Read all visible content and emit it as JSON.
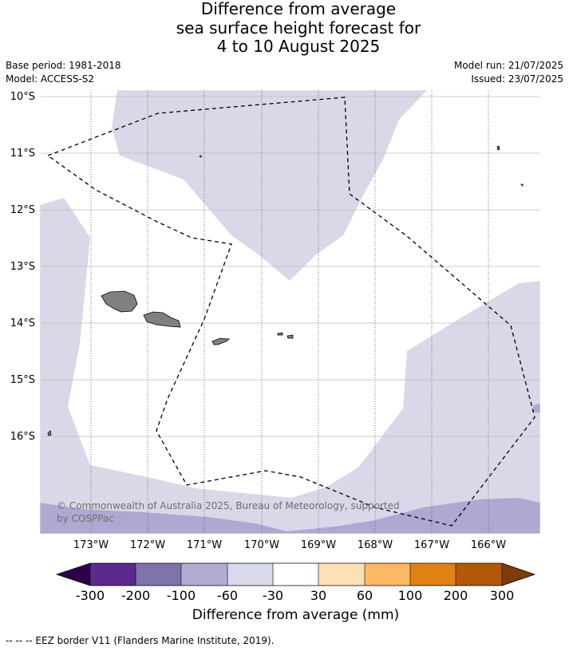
{
  "title": {
    "line1": "Difference from average",
    "line2": "sea surface height forecast for",
    "line3": "4 to 10 August 2025"
  },
  "meta": {
    "base_period": "Base period: 1981-2018",
    "model": "Model: ACCESS-S2",
    "model_run": "Model run: 21/07/2025",
    "issued": "Issued: 23/07/2025"
  },
  "map": {
    "lat_labels": [
      "10°S",
      "11°S",
      "12°S",
      "13°S",
      "14°S",
      "15°S",
      "16°S"
    ],
    "lon_labels": [
      "173°W",
      "172°W",
      "171°W",
      "170°W",
      "169°W",
      "168°W",
      "167°W",
      "166°W"
    ],
    "copyright_line1": "© Commonwealth of Australia 2025, Bureau of Meteorology, supported",
    "copyright_line2": "by COSPPac",
    "colors": {
      "land": "#808080",
      "band_m60_m30": "#d8d8e8",
      "band_m100_m60": "#b0a8d0",
      "eez_line": "#000000"
    }
  },
  "colorbar": {
    "tick_labels": [
      "-300",
      "-200",
      "-100",
      "-60",
      "-30",
      "30",
      "60",
      "100",
      "200",
      "300"
    ],
    "label": "Difference from average (mm)",
    "colors": {
      "under": "#2d004b",
      "c1": "#5b2a8c",
      "c2": "#8073ac",
      "c3": "#b2abd2",
      "c4": "#d8daeb",
      "c5": "#ffffff",
      "c6": "#fee0b6",
      "c7": "#fdb863",
      "c8": "#e08214",
      "c9": "#b35806",
      "over": "#7f3b08"
    }
  },
  "footer": {
    "eez_note": "--  --  -- EEZ border V11 (Flanders Marine Institute, 2019)."
  }
}
